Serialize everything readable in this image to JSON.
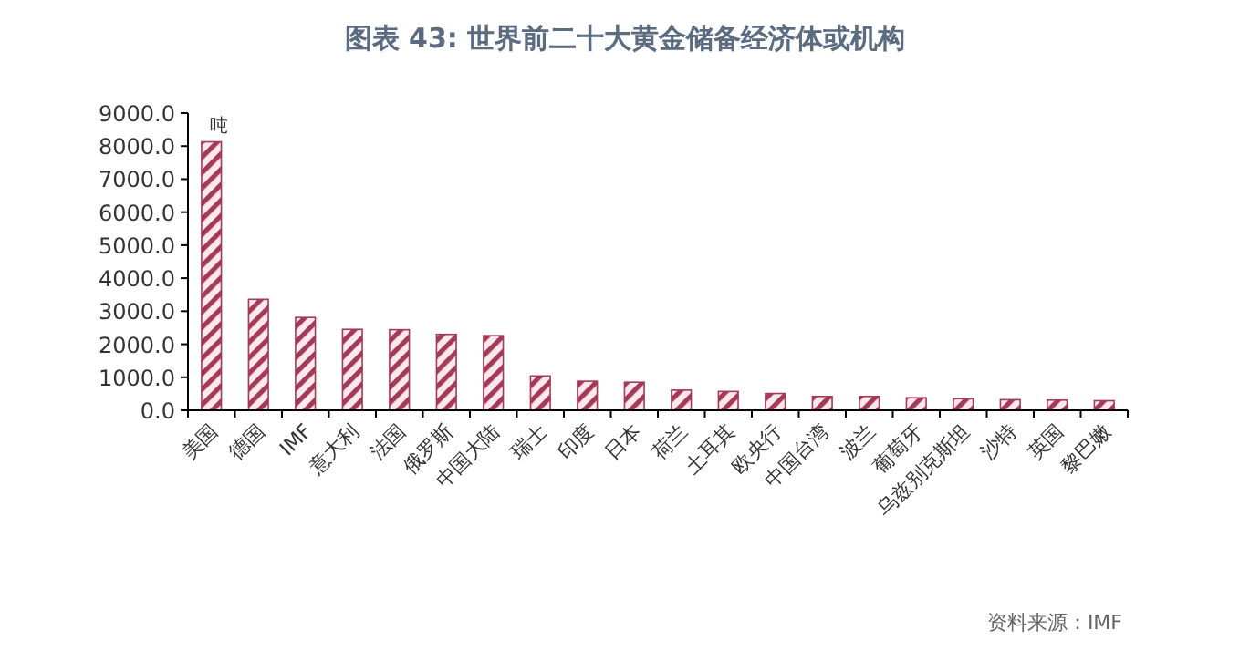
{
  "chart_data": {
    "type": "bar",
    "title": "图表 43: 世界前二十大黄金储备经济体或机构",
    "ylabel": "吨",
    "categories": [
      "美国",
      "德国",
      "IMF",
      "意大利",
      "法国",
      "俄罗斯",
      "中国大陆",
      "瑞士",
      "印度",
      "日本",
      "荷兰",
      "土耳其",
      "欧央行",
      "中国台湾",
      "波兰",
      "葡萄牙",
      "乌兹别克斯坦",
      "沙特",
      "英国",
      "黎巴嫩"
    ],
    "values": [
      8130,
      3360,
      2810,
      2450,
      2440,
      2300,
      2260,
      1040,
      880,
      850,
      610,
      570,
      510,
      420,
      420,
      380,
      350,
      320,
      310,
      290
    ],
    "color": "#a33a58",
    "ylim": [
      0,
      9000
    ],
    "yticks": [
      {
        "value": 0,
        "label": "0.0"
      },
      {
        "value": 1000,
        "label": "1000.0"
      },
      {
        "value": 2000,
        "label": "2000.0"
      },
      {
        "value": 3000,
        "label": "3000.0"
      },
      {
        "value": 4000,
        "label": "4000.0"
      },
      {
        "value": 5000,
        "label": "5000.0"
      },
      {
        "value": 6000,
        "label": "6000.0"
      },
      {
        "value": 7000,
        "label": "7000.0"
      },
      {
        "value": 8000,
        "label": "8000.0"
      },
      {
        "value": 9000,
        "label": "9000.0"
      }
    ],
    "grid": false,
    "annotations": [
      "资料来源：IMF"
    ]
  }
}
